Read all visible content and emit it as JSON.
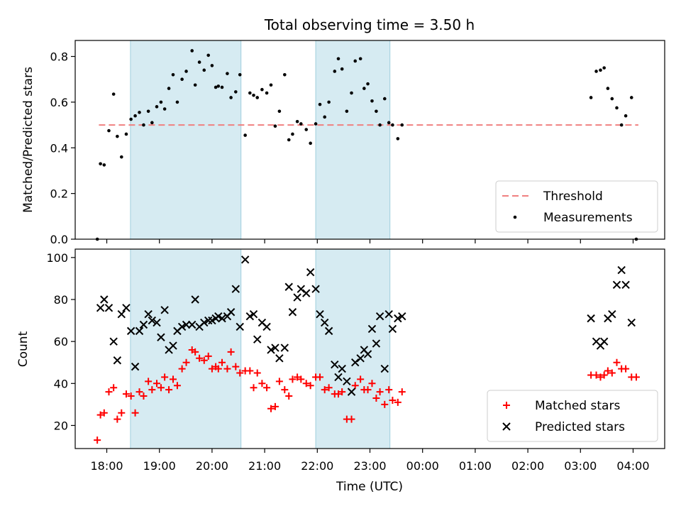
{
  "title": "Total observing time = 3.50 h",
  "chart_data": [
    {
      "type": "scatter",
      "ylabel": "Matched/Predicted stars",
      "ylim": [
        0,
        0.87
      ],
      "yticks": [
        "0.0",
        "0.2",
        "0.4",
        "0.6",
        "0.8"
      ],
      "ytick_values": [
        0,
        0.2,
        0.4,
        0.6,
        0.8
      ],
      "xlim": [
        17.4,
        28.6
      ],
      "legend_position": "bottom-right",
      "observing_windows": [
        [
          18.45,
          20.55
        ],
        [
          21.97,
          23.38
        ]
      ],
      "threshold": {
        "name": "Threshold",
        "y": 0.5,
        "x_range": [
          17.85,
          28.1
        ],
        "color": "#f08080"
      },
      "series": [
        {
          "name": "Measurements",
          "color": "#000000",
          "points": [
            [
              17.82,
              0.0
            ],
            [
              17.88,
              0.33
            ],
            [
              17.95,
              0.325
            ],
            [
              18.04,
              0.475
            ],
            [
              18.13,
              0.635
            ],
            [
              18.2,
              0.45
            ],
            [
              18.28,
              0.36
            ],
            [
              18.37,
              0.46
            ],
            [
              18.46,
              0.525
            ],
            [
              18.54,
              0.54
            ],
            [
              18.62,
              0.555
            ],
            [
              18.7,
              0.5
            ],
            [
              18.79,
              0.56
            ],
            [
              18.86,
              0.51
            ],
            [
              18.95,
              0.58
            ],
            [
              19.03,
              0.6
            ],
            [
              19.1,
              0.57
            ],
            [
              19.18,
              0.66
            ],
            [
              19.26,
              0.72
            ],
            [
              19.34,
              0.6
            ],
            [
              19.43,
              0.7
            ],
            [
              19.51,
              0.735
            ],
            [
              19.62,
              0.825
            ],
            [
              19.68,
              0.675
            ],
            [
              19.76,
              0.775
            ],
            [
              19.85,
              0.74
            ],
            [
              19.93,
              0.805
            ],
            [
              20.0,
              0.76
            ],
            [
              20.07,
              0.665
            ],
            [
              20.12,
              0.67
            ],
            [
              20.19,
              0.665
            ],
            [
              20.29,
              0.725
            ],
            [
              20.36,
              0.62
            ],
            [
              20.45,
              0.645
            ],
            [
              20.53,
              0.72
            ],
            [
              20.63,
              0.455
            ],
            [
              20.72,
              0.64
            ],
            [
              20.79,
              0.63
            ],
            [
              20.86,
              0.62
            ],
            [
              20.95,
              0.655
            ],
            [
              21.04,
              0.64
            ],
            [
              21.12,
              0.675
            ],
            [
              21.2,
              0.495
            ],
            [
              21.28,
              0.56
            ],
            [
              21.38,
              0.72
            ],
            [
              21.46,
              0.435
            ],
            [
              21.53,
              0.46
            ],
            [
              21.62,
              0.515
            ],
            [
              21.69,
              0.505
            ],
            [
              21.79,
              0.48
            ],
            [
              21.87,
              0.42
            ],
            [
              21.97,
              0.505
            ],
            [
              22.05,
              0.59
            ],
            [
              22.14,
              0.535
            ],
            [
              22.22,
              0.6
            ],
            [
              22.33,
              0.735
            ],
            [
              22.4,
              0.79
            ],
            [
              22.47,
              0.745
            ],
            [
              22.56,
              0.56
            ],
            [
              22.65,
              0.64
            ],
            [
              22.72,
              0.78
            ],
            [
              22.82,
              0.79
            ],
            [
              22.89,
              0.66
            ],
            [
              22.96,
              0.68
            ],
            [
              23.04,
              0.605
            ],
            [
              23.12,
              0.56
            ],
            [
              23.19,
              0.5
            ],
            [
              23.28,
              0.615
            ],
            [
              23.36,
              0.51
            ],
            [
              23.43,
              0.5
            ],
            [
              23.53,
              0.44
            ],
            [
              23.61,
              0.5
            ],
            [
              27.2,
              0.62
            ],
            [
              27.3,
              0.735
            ],
            [
              27.38,
              0.74
            ],
            [
              27.45,
              0.75
            ],
            [
              27.52,
              0.66
            ],
            [
              27.6,
              0.615
            ],
            [
              27.69,
              0.575
            ],
            [
              27.78,
              0.5
            ],
            [
              27.86,
              0.54
            ],
            [
              27.97,
              0.62
            ],
            [
              28.06,
              0.0
            ]
          ]
        }
      ]
    },
    {
      "type": "scatter",
      "xlabel": "Time (UTC)",
      "ylabel": "Count",
      "ylim": [
        9,
        104
      ],
      "yticks": [
        "20",
        "40",
        "60",
        "80",
        "100"
      ],
      "ytick_values": [
        20,
        40,
        60,
        80,
        100
      ],
      "xlim": [
        17.4,
        28.6
      ],
      "x_tick_values": [
        18,
        19,
        20,
        21,
        22,
        23,
        24,
        25,
        26,
        27,
        28
      ],
      "x_tick_labels": [
        "18:00",
        "19:00",
        "20:00",
        "21:00",
        "22:00",
        "23:00",
        "00:00",
        "01:00",
        "02:00",
        "03:00",
        "04:00"
      ],
      "legend_position": "bottom-right",
      "observing_windows": [
        [
          18.45,
          20.55
        ],
        [
          21.97,
          23.38
        ]
      ],
      "series": [
        {
          "name": "Matched stars",
          "marker": "+",
          "color": "#ff0000",
          "points": [
            [
              17.82,
              13
            ],
            [
              17.88,
              25
            ],
            [
              17.95,
              26
            ],
            [
              18.04,
              36
            ],
            [
              18.13,
              38
            ],
            [
              18.2,
              23
            ],
            [
              18.28,
              26
            ],
            [
              18.37,
              35
            ],
            [
              18.46,
              34
            ],
            [
              18.54,
              26
            ],
            [
              18.62,
              36
            ],
            [
              18.7,
              34
            ],
            [
              18.79,
              41
            ],
            [
              18.86,
              37
            ],
            [
              18.95,
              40
            ],
            [
              19.03,
              38
            ],
            [
              19.1,
              43
            ],
            [
              19.18,
              37
            ],
            [
              19.26,
              42
            ],
            [
              19.34,
              39
            ],
            [
              19.43,
              47
            ],
            [
              19.51,
              50
            ],
            [
              19.62,
              56
            ],
            [
              19.68,
              55
            ],
            [
              19.76,
              52
            ],
            [
              19.85,
              51
            ],
            [
              19.93,
              53
            ],
            [
              20.0,
              47
            ],
            [
              20.07,
              48
            ],
            [
              20.12,
              47
            ],
            [
              20.19,
              50
            ],
            [
              20.29,
              47
            ],
            [
              20.36,
              55
            ],
            [
              20.45,
              48
            ],
            [
              20.53,
              45
            ],
            [
              20.63,
              46
            ],
            [
              20.72,
              46
            ],
            [
              20.79,
              38
            ],
            [
              20.86,
              45
            ],
            [
              20.95,
              40
            ],
            [
              21.04,
              38
            ],
            [
              21.12,
              28
            ],
            [
              21.2,
              29
            ],
            [
              21.28,
              41
            ],
            [
              21.38,
              37
            ],
            [
              21.46,
              34
            ],
            [
              21.53,
              42
            ],
            [
              21.62,
              43
            ],
            [
              21.69,
              42
            ],
            [
              21.79,
              40
            ],
            [
              21.87,
              39
            ],
            [
              21.97,
              43
            ],
            [
              22.05,
              43
            ],
            [
              22.14,
              37
            ],
            [
              22.22,
              38
            ],
            [
              22.33,
              35
            ],
            [
              22.4,
              35
            ],
            [
              22.47,
              36
            ],
            [
              22.56,
              23
            ],
            [
              22.65,
              23
            ],
            [
              22.72,
              39
            ],
            [
              22.82,
              42
            ],
            [
              22.89,
              37
            ],
            [
              22.96,
              37
            ],
            [
              23.04,
              40
            ],
            [
              23.12,
              33
            ],
            [
              23.19,
              36
            ],
            [
              23.28,
              30
            ],
            [
              23.36,
              37
            ],
            [
              23.43,
              32
            ],
            [
              23.53,
              31
            ],
            [
              23.61,
              36
            ],
            [
              27.2,
              44
            ],
            [
              27.3,
              44
            ],
            [
              27.38,
              43
            ],
            [
              27.45,
              44
            ],
            [
              27.52,
              46
            ],
            [
              27.6,
              45
            ],
            [
              27.69,
              50
            ],
            [
              27.78,
              47
            ],
            [
              27.86,
              47
            ],
            [
              27.97,
              43
            ],
            [
              28.06,
              43
            ]
          ]
        },
        {
          "name": "Predicted stars",
          "marker": "x",
          "color": "#000000",
          "points": [
            [
              17.88,
              76
            ],
            [
              17.95,
              80
            ],
            [
              18.04,
              76
            ],
            [
              18.13,
              60
            ],
            [
              18.2,
              51
            ],
            [
              18.28,
              73
            ],
            [
              18.37,
              76
            ],
            [
              18.46,
              65
            ],
            [
              18.54,
              48
            ],
            [
              18.62,
              65
            ],
            [
              18.7,
              68
            ],
            [
              18.79,
              73
            ],
            [
              18.86,
              70
            ],
            [
              18.95,
              69
            ],
            [
              19.03,
              62
            ],
            [
              19.1,
              75
            ],
            [
              19.18,
              56
            ],
            [
              19.26,
              58
            ],
            [
              19.34,
              65
            ],
            [
              19.43,
              67
            ],
            [
              19.51,
              68
            ],
            [
              19.62,
              68
            ],
            [
              19.68,
              80
            ],
            [
              19.76,
              67
            ],
            [
              19.85,
              69
            ],
            [
              19.93,
              70
            ],
            [
              20.0,
              70
            ],
            [
              20.07,
              71
            ],
            [
              20.12,
              72
            ],
            [
              20.19,
              71
            ],
            [
              20.29,
              72
            ],
            [
              20.36,
              74
            ],
            [
              20.45,
              85
            ],
            [
              20.53,
              67
            ],
            [
              20.63,
              99
            ],
            [
              20.72,
              72
            ],
            [
              20.79,
              73
            ],
            [
              20.86,
              61
            ],
            [
              20.95,
              69
            ],
            [
              21.04,
              67
            ],
            [
              21.12,
              56
            ],
            [
              21.2,
              57
            ],
            [
              21.28,
              52
            ],
            [
              21.38,
              57
            ],
            [
              21.46,
              86
            ],
            [
              21.53,
              74
            ],
            [
              21.62,
              81
            ],
            [
              21.69,
              85
            ],
            [
              21.79,
              83
            ],
            [
              21.87,
              93
            ],
            [
              21.97,
              85
            ],
            [
              22.05,
              73
            ],
            [
              22.14,
              69
            ],
            [
              22.22,
              65
            ],
            [
              22.33,
              49
            ],
            [
              22.4,
              43
            ],
            [
              22.47,
              47
            ],
            [
              22.56,
              41
            ],
            [
              22.65,
              36
            ],
            [
              22.72,
              50
            ],
            [
              22.82,
              52
            ],
            [
              22.89,
              56
            ],
            [
              22.96,
              54
            ],
            [
              23.04,
              66
            ],
            [
              23.12,
              59
            ],
            [
              23.19,
              72
            ],
            [
              23.28,
              47
            ],
            [
              23.36,
              73
            ],
            [
              23.43,
              66
            ],
            [
              23.53,
              71
            ],
            [
              23.61,
              72
            ],
            [
              27.2,
              71
            ],
            [
              27.3,
              60
            ],
            [
              27.38,
              58
            ],
            [
              27.45,
              60
            ],
            [
              27.52,
              71
            ],
            [
              27.6,
              73
            ],
            [
              27.69,
              87
            ],
            [
              27.78,
              94
            ],
            [
              27.86,
              87
            ],
            [
              27.97,
              69
            ]
          ]
        }
      ]
    }
  ]
}
